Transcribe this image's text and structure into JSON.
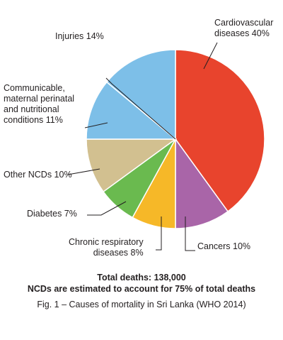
{
  "chart_data": {
    "type": "pie",
    "title": "",
    "slices": [
      {
        "label": "Cardiovascular\ndiseases 40%",
        "name": "Cardiovascular diseases",
        "value": 40,
        "color": "#e8442d"
      },
      {
        "label": "Cancers 10%",
        "name": "Cancers",
        "value": 10,
        "color": "#a965a8"
      },
      {
        "label": "Chronic respiratory\ndiseases 8%",
        "name": "Chronic respiratory diseases",
        "value": 8,
        "color": "#f6b828"
      },
      {
        "label": "Diabetes 7%",
        "name": "Diabetes",
        "value": 7,
        "color": "#6aba4f"
      },
      {
        "label": "Other NCDs 10%",
        "name": "Other NCDs",
        "value": 10,
        "color": "#d2c090"
      },
      {
        "label": "Communicable,\nmaternal perinatal\nand nutritional\nconditions 11%",
        "name": "Communicable, maternal perinatal and nutritional conditions",
        "value": 11,
        "color": "#7dbfe8"
      },
      {
        "label": "Injuries 14%",
        "name": "Injuries",
        "value": 14,
        "color": "#7dbfe8"
      }
    ],
    "start_angle": "top (12 o'clock)",
    "direction": "clockwise"
  },
  "footer": {
    "total": "Total deaths: 138,000",
    "ncd_note": "NCDs are estimated to account for 75% of total deaths",
    "caption": "Fig. 1 – Causes of mortality in Sri Lanka (WHO 2014)"
  }
}
